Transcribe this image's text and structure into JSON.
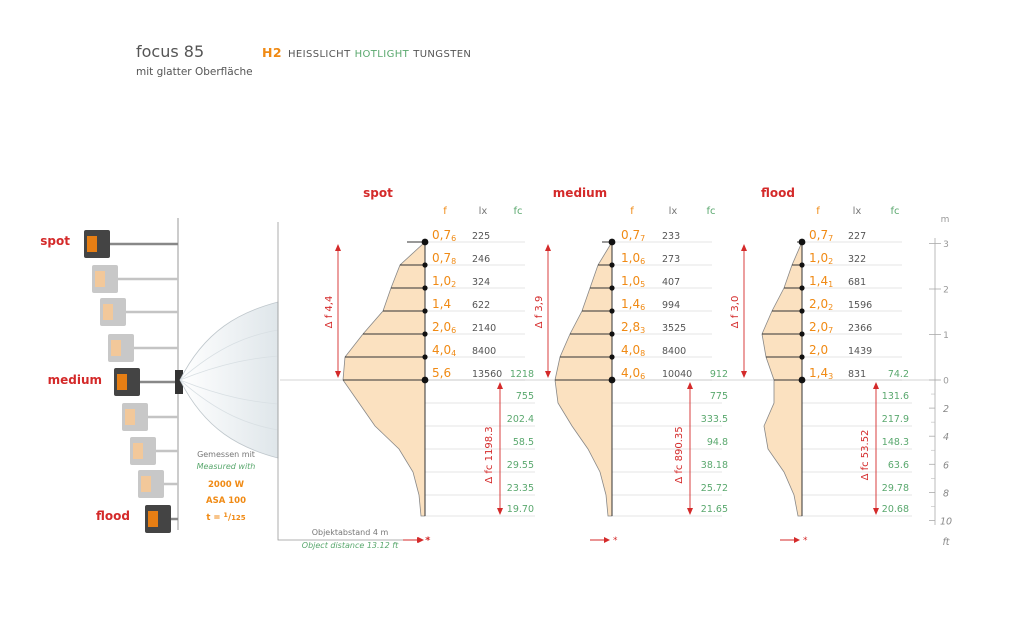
{
  "header": {
    "model": "focus 85",
    "subtitle": "mit glatter Oberfläche",
    "lamp_code": "H2",
    "lamp_de": "HEISSLICHT",
    "lamp_en": "HOTLIGHT",
    "lamp_tungsten": "TUNGSTEN"
  },
  "colors": {
    "orange": "#f08a14",
    "red": "#d42a2a",
    "green": "#5aa86e",
    "gray_text": "#555555",
    "beam": "#f7c98d"
  },
  "left_panel": {
    "labels": {
      "spot": "spot",
      "medium": "medium",
      "flood": "flood"
    },
    "measure": {
      "de": "Gemessen mit",
      "en": "Measured with",
      "watt": "2000 W",
      "asa": "ASA 100",
      "t_prefix": "t = ",
      "t_num": "1",
      "t_den": "125"
    },
    "distance": {
      "de": "Objektabstand  4 m",
      "en": "Object distance 13.12 ft"
    }
  },
  "axis": {
    "m_unit": "m",
    "ft_unit": "ft",
    "m_ticks": [
      "3",
      "2",
      "1",
      "0"
    ],
    "ft_ticks": [
      "2",
      "4",
      "6",
      "8",
      "10"
    ]
  },
  "chart_data": {
    "type": "table",
    "column_headers": {
      "f": "f",
      "lx": "lx",
      "fc": "fc"
    },
    "groups": [
      {
        "name": "spot",
        "delta_f": "Δ f 4,4",
        "delta_fc": "Δ fc 1198.3",
        "f_rows": [
          {
            "f": "0,7",
            "sub": "6",
            "lx": "225"
          },
          {
            "f": "0,7",
            "sub": "8",
            "lx": "246"
          },
          {
            "f": "1,0",
            "sub": "2",
            "lx": "324"
          },
          {
            "f": "1,4",
            "sub": "",
            "lx": "622"
          },
          {
            "f": "2,0",
            "sub": "6",
            "lx": "2140"
          },
          {
            "f": "4,0",
            "sub": "4",
            "lx": "8400"
          },
          {
            "f": "5,6",
            "sub": "",
            "lx": "13560",
            "fc": "1218"
          }
        ],
        "fc_below": [
          "755",
          "202.4",
          "58.5",
          "29.55",
          "23.35",
          "19.70"
        ]
      },
      {
        "name": "medium",
        "delta_f": "Δ f 3,9",
        "delta_fc": "Δ fc 890.35",
        "f_rows": [
          {
            "f": "0,7",
            "sub": "7",
            "lx": "233"
          },
          {
            "f": "1,0",
            "sub": "6",
            "lx": "273"
          },
          {
            "f": "1,0",
            "sub": "5",
            "lx": "407"
          },
          {
            "f": "1,4",
            "sub": "6",
            "lx": "994"
          },
          {
            "f": "2,8",
            "sub": "3",
            "lx": "3525"
          },
          {
            "f": "4,0",
            "sub": "8",
            "lx": "8400"
          },
          {
            "f": "4,0",
            "sub": "6",
            "lx": "10040",
            "fc": "912"
          }
        ],
        "fc_below": [
          "775",
          "333.5",
          "94.8",
          "38.18",
          "25.72",
          "21.65"
        ]
      },
      {
        "name": "flood",
        "delta_f": "Δ f 3,0",
        "delta_fc": "Δ fc 53.52",
        "f_rows": [
          {
            "f": "0,7",
            "sub": "7",
            "lx": "227"
          },
          {
            "f": "1,0",
            "sub": "2",
            "lx": "322"
          },
          {
            "f": "1,4",
            "sub": "1",
            "lx": "681"
          },
          {
            "f": "2,0",
            "sub": "2",
            "lx": "1596"
          },
          {
            "f": "2,0",
            "sub": "7",
            "lx": "2366"
          },
          {
            "f": "2,0",
            "sub": "",
            "lx": "1439"
          },
          {
            "f": "1,4",
            "sub": "3",
            "lx": "831",
            "fc": "74.2"
          }
        ],
        "fc_below": [
          "131.6",
          "217.9",
          "148.3",
          "63.6",
          "29.78",
          "20.68"
        ]
      }
    ]
  }
}
